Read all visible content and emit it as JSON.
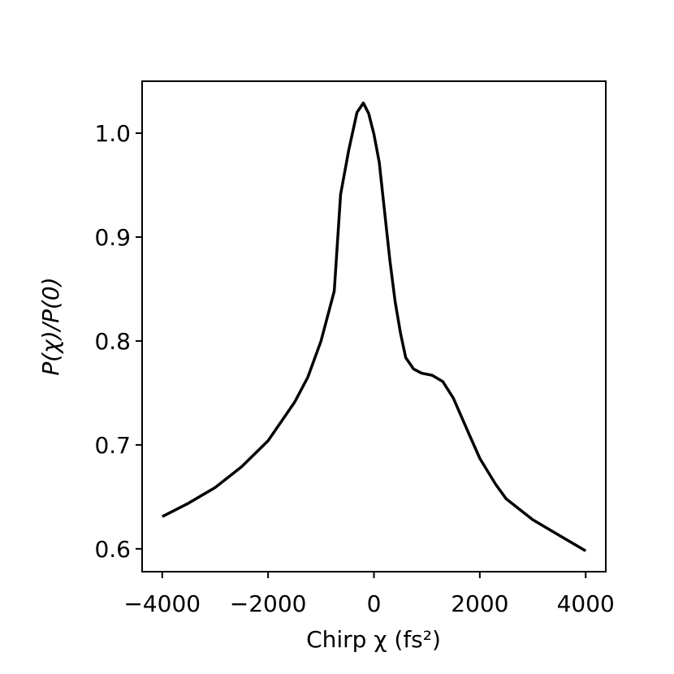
{
  "chart_data": {
    "type": "line",
    "xlabel": "Chirp χ (fs²)",
    "ylabel": "P(χ)/P(0)",
    "x": [
      -4000,
      -3500,
      -3000,
      -2500,
      -2000,
      -1500,
      -1250,
      -1000,
      -750,
      -630,
      -475,
      -320,
      -200,
      -100,
      0,
      100,
      200,
      300,
      400,
      500,
      600,
      750,
      900,
      1100,
      1300,
      1500,
      1800,
      2000,
      2300,
      2500,
      3000,
      3500,
      4000
    ],
    "series": [
      {
        "color": "#000000",
        "values": [
          0.631,
          0.644,
          0.659,
          0.679,
          0.704,
          0.741,
          0.765,
          0.8,
          0.848,
          0.941,
          0.984,
          1.02,
          1.029,
          1.019,
          0.999,
          0.972,
          0.925,
          0.878,
          0.838,
          0.808,
          0.784,
          0.773,
          0.769,
          0.767,
          0.761,
          0.745,
          0.71,
          0.687,
          0.662,
          0.648,
          0.628,
          0.613,
          0.598
        ]
      }
    ],
    "xlim": [
      -4380,
      4380
    ],
    "ylim": [
      0.578,
      1.05
    ],
    "xticks": [
      {
        "value": -4000,
        "label": "−4000"
      },
      {
        "value": -2000,
        "label": "−2000"
      },
      0,
      2000,
      4000
    ],
    "yticks": [
      0.6,
      0.7,
      0.8,
      0.9,
      {
        "value": 1,
        "label": "1.0"
      }
    ]
  }
}
